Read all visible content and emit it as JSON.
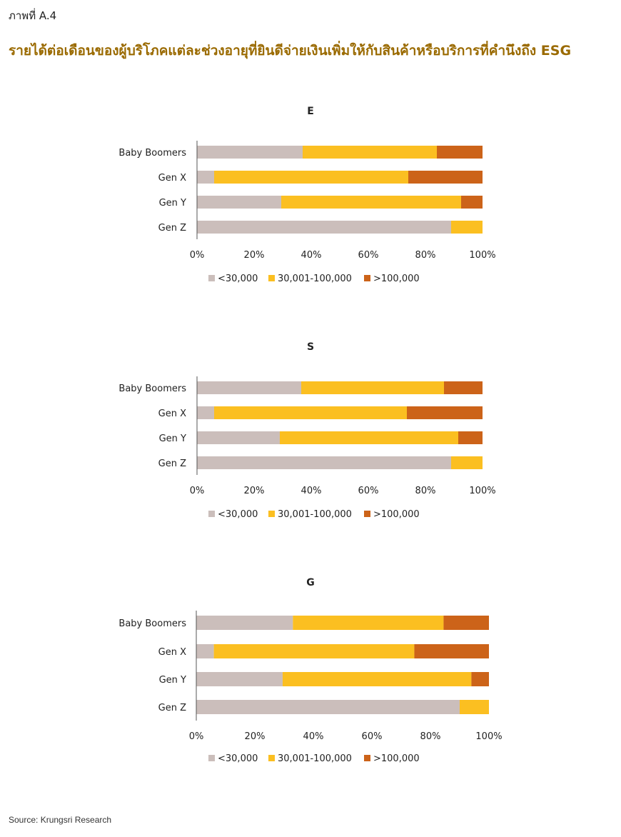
{
  "figure_label": "ภาพที่ A.4",
  "title": "รายได้ต่อเดือนของผู้บริโภคแต่ละช่วงอายุที่ยินดีจ่ายเงินเพิ่มให้กับสินค้าหรือบริการที่คำนึงถึง ESG",
  "source": "Source: Krungsri Research",
  "colors": {
    "<30,000": "#cbbebb",
    "30,001-100,000": "#fbbf21",
    ">100,000": "#cc6319",
    "axis": "#555555",
    "title": "#9a6a00"
  },
  "chart_data": [
    {
      "type": "bar",
      "orientation": "horizontal",
      "stacked": true,
      "title": "E",
      "categories": [
        "Baby Boomers",
        "Gen X",
        "Gen Y",
        "Gen Z"
      ],
      "series": [
        {
          "name": "<30,000",
          "values": [
            37,
            6,
            29.5,
            89
          ]
        },
        {
          "name": "30,001-100,000",
          "values": [
            47,
            68,
            63,
            11
          ]
        },
        {
          "name": ">100,000",
          "values": [
            16,
            26,
            7.5,
            0
          ]
        }
      ],
      "xlim": [
        0,
        100
      ],
      "xticks": [
        "0%",
        "20%",
        "40%",
        "60%",
        "80%",
        "100%"
      ],
      "legend": "bottom"
    },
    {
      "type": "bar",
      "orientation": "horizontal",
      "stacked": true,
      "title": "S",
      "categories": [
        "Baby Boomers",
        "Gen X",
        "Gen Y",
        "Gen Z"
      ],
      "series": [
        {
          "name": "<30,000",
          "values": [
            36.5,
            6,
            29,
            89
          ]
        },
        {
          "name": "30,001-100,000",
          "values": [
            50,
            67.5,
            62.5,
            11
          ]
        },
        {
          "name": ">100,000",
          "values": [
            13.5,
            26.5,
            8.5,
            0
          ]
        }
      ],
      "xlim": [
        0,
        100
      ],
      "xticks": [
        "0%",
        "20%",
        "40%",
        "60%",
        "80%",
        "100%"
      ],
      "legend": "bottom"
    },
    {
      "type": "bar",
      "orientation": "horizontal",
      "stacked": true,
      "title": "G",
      "categories": [
        "Baby Boomers",
        "Gen X",
        "Gen Y",
        "Gen Z"
      ],
      "series": [
        {
          "name": "<30,000",
          "values": [
            33,
            6,
            29.5,
            90
          ]
        },
        {
          "name": "30,001-100,000",
          "values": [
            51.5,
            68.5,
            64.5,
            10
          ]
        },
        {
          "name": ">100,000",
          "values": [
            15.5,
            25.5,
            6,
            0
          ]
        }
      ],
      "xlim": [
        0,
        100
      ],
      "xticks": [
        "0%",
        "20%",
        "40%",
        "60%",
        "80%",
        "100%"
      ],
      "legend": "bottom"
    }
  ]
}
